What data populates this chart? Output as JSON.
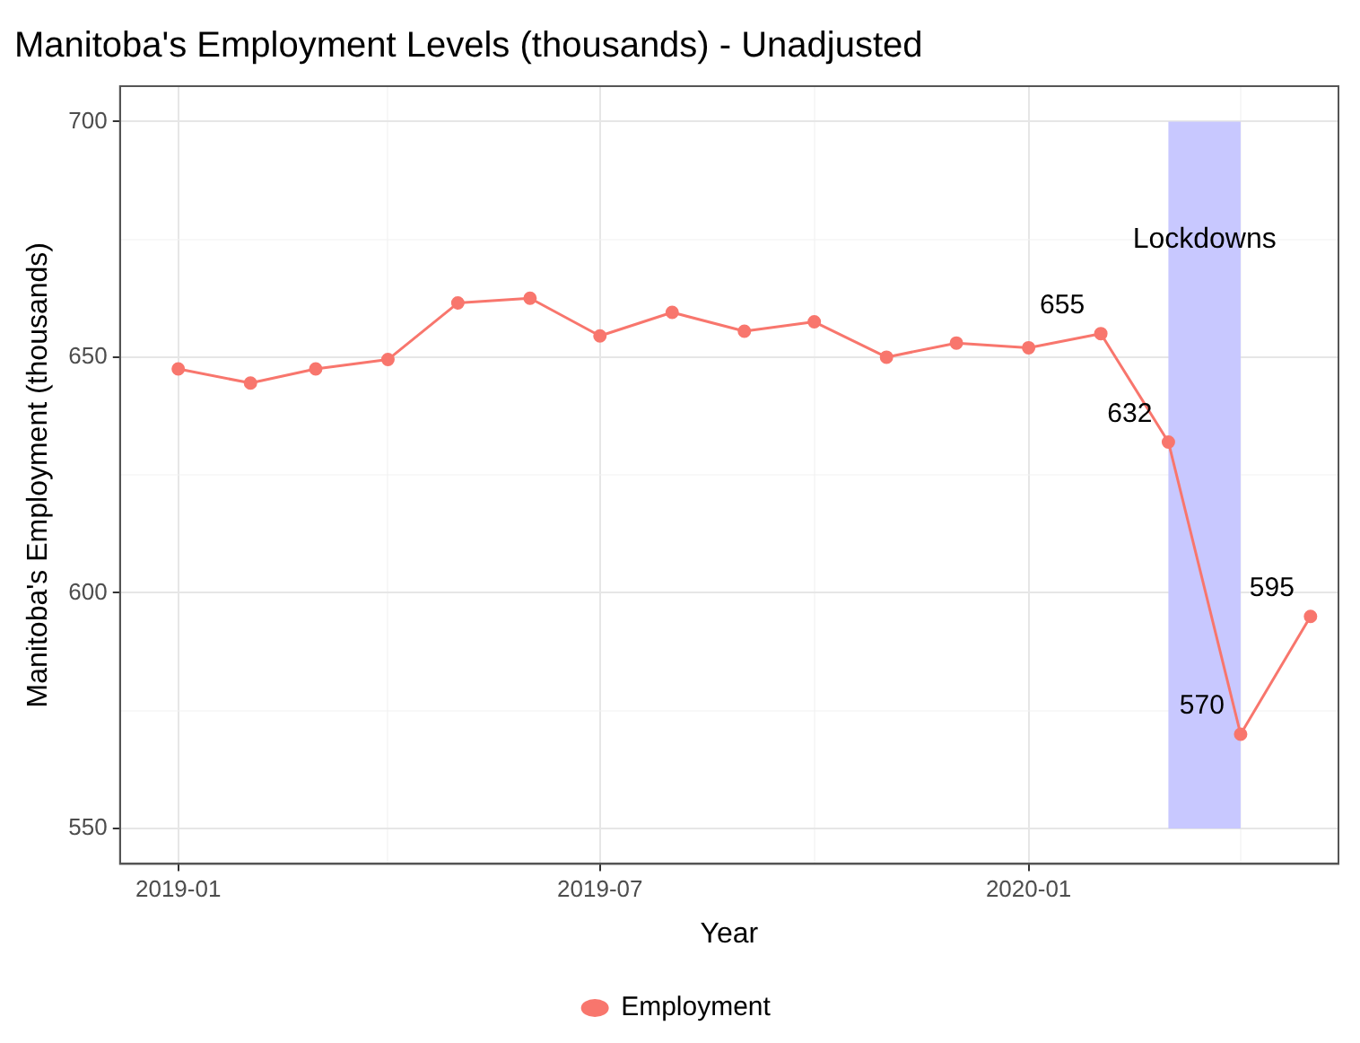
{
  "chart_data": {
    "type": "line",
    "title": "Manitoba's Employment Levels (thousands) - Unadjusted",
    "xlabel": "Year",
    "ylabel": "Manitoba's Employment (thousands)",
    "x": [
      "2019-01",
      "2019-02",
      "2019-03",
      "2019-04",
      "2019-05",
      "2019-06",
      "2019-07",
      "2019-08",
      "2019-09",
      "2019-10",
      "2019-11",
      "2019-12",
      "2020-01",
      "2020-02",
      "2020-03",
      "2020-04",
      "2020-05"
    ],
    "series": [
      {
        "name": "Employment",
        "color": "#f8766d",
        "values": [
          647.5,
          644.5,
          647.5,
          649.5,
          661.5,
          662.5,
          654.5,
          659.5,
          655.5,
          657.5,
          650,
          653,
          652,
          655,
          632,
          570,
          595
        ],
        "value_labels": [
          null,
          null,
          null,
          null,
          null,
          null,
          null,
          null,
          null,
          null,
          null,
          null,
          null,
          "655",
          "632",
          "570",
          "595"
        ]
      }
    ],
    "xlim": [
      "2018-12-07",
      "2020-05-13"
    ],
    "xticks": [
      {
        "value": "2019-01",
        "label": "2019-01"
      },
      {
        "value": "2019-04",
        "label": null
      },
      {
        "value": "2019-07",
        "label": "2019-07"
      },
      {
        "value": "2019-10",
        "label": null
      },
      {
        "value": "2020-01",
        "label": "2020-01"
      },
      {
        "value": "2020-04",
        "label": null
      }
    ],
    "ylim": [
      542.5,
      707.5
    ],
    "yticks": [
      550,
      {
        "value": 575,
        "label": null
      },
      600,
      {
        "value": 625,
        "label": null
      },
      650,
      {
        "value": 675,
        "label": null
      },
      700
    ],
    "bands": [
      {
        "axis": "x",
        "from": "2020-03",
        "to": "2020-04",
        "label": "Lockdowns",
        "color": "#c8c8ff"
      }
    ],
    "grid": true,
    "legend": "bottom",
    "marker": "circle",
    "line_style": "solid"
  }
}
